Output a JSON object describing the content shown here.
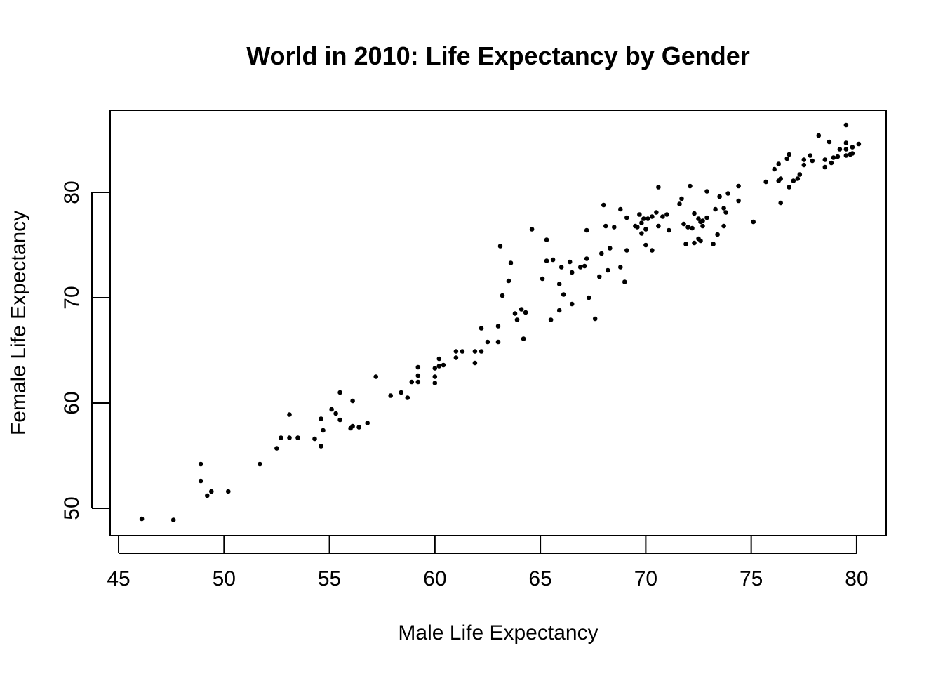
{
  "chart_data": {
    "type": "scatter",
    "title": "World in 2010: Life Expectancy by Gender",
    "xlabel": "Male Life Expectancy",
    "ylabel": "Female Life Expectancy",
    "xlim": [
      44.6,
      81.4
    ],
    "ylim": [
      47.4,
      87.8
    ],
    "x_ticks": [
      45,
      50,
      55,
      60,
      65,
      70,
      75,
      80
    ],
    "y_ticks": [
      50,
      60,
      70,
      80
    ],
    "x_tick_labels": [
      "45",
      "50",
      "55",
      "60",
      "65",
      "70",
      "75",
      "80"
    ],
    "y_tick_labels": [
      "50",
      "60",
      "70",
      "80"
    ],
    "grid": false,
    "legend": "none",
    "point_color": "#000000",
    "points": [
      [
        46.1,
        49.0
      ],
      [
        47.6,
        48.9
      ],
      [
        48.9,
        54.2
      ],
      [
        48.9,
        52.6
      ],
      [
        49.2,
        51.2
      ],
      [
        49.4,
        51.6
      ],
      [
        50.2,
        51.6
      ],
      [
        51.7,
        54.2
      ],
      [
        52.5,
        55.7
      ],
      [
        52.7,
        56.7
      ],
      [
        53.1,
        58.9
      ],
      [
        53.1,
        56.7
      ],
      [
        53.5,
        56.7
      ],
      [
        54.3,
        56.6
      ],
      [
        54.6,
        55.9
      ],
      [
        54.6,
        58.5
      ],
      [
        54.7,
        57.4
      ],
      [
        55.1,
        59.4
      ],
      [
        55.3,
        59.0
      ],
      [
        55.5,
        58.4
      ],
      [
        55.5,
        61.0
      ],
      [
        56.0,
        57.6
      ],
      [
        56.1,
        57.8
      ],
      [
        56.1,
        60.2
      ],
      [
        56.4,
        57.7
      ],
      [
        56.8,
        58.1
      ],
      [
        57.2,
        62.5
      ],
      [
        57.9,
        60.7
      ],
      [
        58.4,
        61.0
      ],
      [
        58.7,
        60.5
      ],
      [
        58.9,
        62.0
      ],
      [
        59.2,
        62.0
      ],
      [
        59.2,
        63.4
      ],
      [
        59.2,
        62.6
      ],
      [
        60.0,
        63.3
      ],
      [
        60.0,
        62.5
      ],
      [
        60.0,
        61.9
      ],
      [
        60.2,
        64.2
      ],
      [
        60.2,
        63.5
      ],
      [
        60.4,
        63.6
      ],
      [
        61.0,
        64.9
      ],
      [
        61.0,
        64.3
      ],
      [
        61.3,
        64.9
      ],
      [
        61.9,
        63.8
      ],
      [
        61.9,
        64.9
      ],
      [
        62.2,
        64.9
      ],
      [
        62.2,
        67.1
      ],
      [
        62.5,
        65.8
      ],
      [
        63.0,
        65.8
      ],
      [
        63.0,
        67.3
      ],
      [
        63.1,
        74.9
      ],
      [
        63.2,
        70.2
      ],
      [
        63.5,
        71.6
      ],
      [
        63.6,
        73.3
      ],
      [
        63.8,
        68.5
      ],
      [
        63.9,
        67.9
      ],
      [
        64.1,
        68.9
      ],
      [
        64.2,
        66.1
      ],
      [
        64.3,
        68.6
      ],
      [
        64.6,
        76.5
      ],
      [
        65.1,
        71.8
      ],
      [
        65.3,
        75.5
      ],
      [
        65.3,
        73.5
      ],
      [
        65.5,
        67.9
      ],
      [
        65.6,
        73.6
      ],
      [
        65.9,
        71.3
      ],
      [
        65.9,
        68.8
      ],
      [
        66.0,
        72.9
      ],
      [
        66.1,
        70.3
      ],
      [
        66.4,
        73.4
      ],
      [
        66.5,
        72.4
      ],
      [
        66.5,
        69.4
      ],
      [
        66.9,
        72.9
      ],
      [
        67.1,
        73.0
      ],
      [
        67.2,
        73.7
      ],
      [
        67.2,
        76.4
      ],
      [
        67.3,
        70.0
      ],
      [
        67.6,
        68.0
      ],
      [
        67.8,
        72.0
      ],
      [
        67.9,
        74.2
      ],
      [
        68.0,
        78.8
      ],
      [
        68.1,
        76.8
      ],
      [
        68.2,
        72.6
      ],
      [
        68.3,
        74.7
      ],
      [
        68.5,
        76.7
      ],
      [
        68.8,
        78.4
      ],
      [
        68.8,
        72.9
      ],
      [
        69.0,
        71.5
      ],
      [
        69.1,
        77.6
      ],
      [
        69.1,
        74.5
      ],
      [
        69.5,
        76.8
      ],
      [
        69.6,
        76.7
      ],
      [
        69.7,
        77.9
      ],
      [
        69.8,
        77.1
      ],
      [
        69.8,
        76.1
      ],
      [
        69.9,
        77.5
      ],
      [
        70.0,
        76.5
      ],
      [
        70.0,
        75.0
      ],
      [
        70.1,
        77.5
      ],
      [
        70.3,
        74.5
      ],
      [
        70.3,
        77.7
      ],
      [
        70.5,
        78.1
      ],
      [
        70.6,
        80.5
      ],
      [
        70.6,
        76.8
      ],
      [
        70.8,
        77.7
      ],
      [
        71.0,
        77.9
      ],
      [
        71.1,
        76.4
      ],
      [
        71.6,
        78.9
      ],
      [
        71.7,
        79.4
      ],
      [
        71.8,
        77.0
      ],
      [
        71.9,
        75.1
      ],
      [
        72.0,
        76.7
      ],
      [
        72.1,
        80.6
      ],
      [
        72.2,
        76.6
      ],
      [
        72.3,
        75.2
      ],
      [
        72.3,
        78.0
      ],
      [
        72.5,
        75.6
      ],
      [
        72.5,
        77.5
      ],
      [
        72.6,
        77.2
      ],
      [
        72.6,
        75.4
      ],
      [
        72.7,
        76.8
      ],
      [
        72.7,
        77.3
      ],
      [
        72.9,
        80.1
      ],
      [
        72.9,
        77.6
      ],
      [
        73.2,
        75.1
      ],
      [
        73.3,
        78.4
      ],
      [
        73.4,
        76.0
      ],
      [
        73.5,
        79.6
      ],
      [
        73.7,
        76.8
      ],
      [
        73.7,
        78.5
      ],
      [
        73.8,
        78.1
      ],
      [
        73.9,
        79.9
      ],
      [
        74.4,
        80.6
      ],
      [
        74.4,
        79.2
      ],
      [
        75.1,
        77.2
      ],
      [
        75.7,
        81.0
      ],
      [
        76.1,
        82.2
      ],
      [
        76.3,
        81.1
      ],
      [
        76.3,
        82.7
      ],
      [
        76.4,
        79.0
      ],
      [
        76.4,
        81.3
      ],
      [
        76.7,
        83.2
      ],
      [
        76.8,
        83.6
      ],
      [
        76.8,
        80.5
      ],
      [
        77.0,
        81.1
      ],
      [
        77.2,
        81.3
      ],
      [
        77.3,
        81.7
      ],
      [
        77.5,
        82.6
      ],
      [
        77.5,
        83.1
      ],
      [
        77.8,
        83.5
      ],
      [
        77.9,
        83.0
      ],
      [
        78.2,
        85.4
      ],
      [
        78.5,
        82.4
      ],
      [
        78.5,
        83.1
      ],
      [
        78.7,
        84.8
      ],
      [
        78.8,
        82.8
      ],
      [
        78.9,
        83.3
      ],
      [
        79.1,
        83.4
      ],
      [
        79.2,
        84.1
      ],
      [
        79.5,
        86.4
      ],
      [
        79.5,
        84.7
      ],
      [
        79.5,
        84.1
      ],
      [
        79.5,
        83.5
      ],
      [
        79.7,
        83.6
      ],
      [
        79.8,
        84.3
      ],
      [
        79.8,
        83.7
      ],
      [
        80.1,
        84.6
      ]
    ]
  }
}
